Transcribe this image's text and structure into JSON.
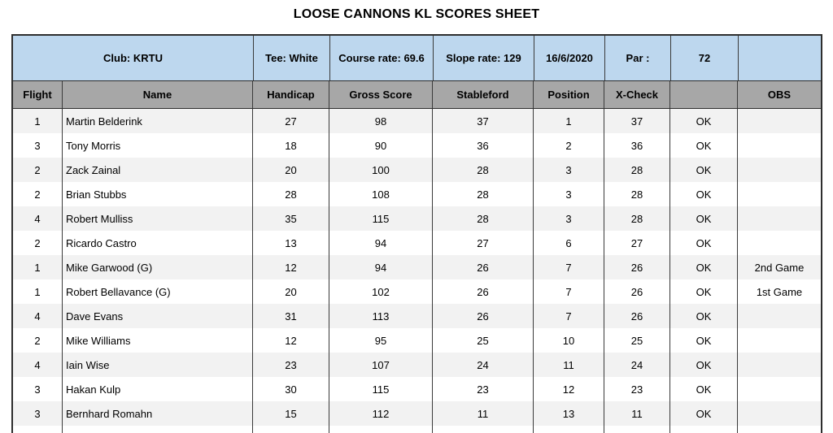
{
  "title": "LOOSE CANNONS KL SCORES SHEET",
  "info_row": {
    "club": "Club: KRTU",
    "tee": "Tee: White",
    "course_rate": "Course rate: 69.6",
    "slope_rate": "Slope rate: 129",
    "date": "16/6/2020",
    "par_label": "Par :",
    "par_value": "72",
    "blank": ""
  },
  "columns": {
    "flight": "Flight",
    "name": "Name",
    "handicap": "Handicap",
    "gross_score": "Gross Score",
    "stableford": "Stableford",
    "position": "Position",
    "x_check": "X-Check",
    "blank": "",
    "obs": "OBS"
  },
  "colors": {
    "info_row_blue": "#BDD7EE",
    "header_gray": "#A7A7A7",
    "stripe_gray": "#F2F2F2",
    "border_dark": "#2E2E2E"
  },
  "rows": [
    {
      "flight": "1",
      "name": "Martin Belderink",
      "handicap": "27",
      "gross_score": "98",
      "stableford": "37",
      "position": "1",
      "x_check": "37",
      "check": "OK",
      "obs": ""
    },
    {
      "flight": "3",
      "name": "Tony Morris",
      "handicap": "18",
      "gross_score": "90",
      "stableford": "36",
      "position": "2",
      "x_check": "36",
      "check": "OK",
      "obs": ""
    },
    {
      "flight": "2",
      "name": "Zack Zainal",
      "handicap": "20",
      "gross_score": "100",
      "stableford": "28",
      "position": "3",
      "x_check": "28",
      "check": "OK",
      "obs": ""
    },
    {
      "flight": "2",
      "name": "Brian Stubbs",
      "handicap": "28",
      "gross_score": "108",
      "stableford": "28",
      "position": "3",
      "x_check": "28",
      "check": "OK",
      "obs": ""
    },
    {
      "flight": "4",
      "name": "Robert Mulliss",
      "handicap": "35",
      "gross_score": "115",
      "stableford": "28",
      "position": "3",
      "x_check": "28",
      "check": "OK",
      "obs": ""
    },
    {
      "flight": "2",
      "name": "Ricardo Castro",
      "handicap": "13",
      "gross_score": "94",
      "stableford": "27",
      "position": "6",
      "x_check": "27",
      "check": "OK",
      "obs": ""
    },
    {
      "flight": "1",
      "name": "Mike Garwood (G)",
      "handicap": "12",
      "gross_score": "94",
      "stableford": "26",
      "position": "7",
      "x_check": "26",
      "check": "OK",
      "obs": "2nd Game"
    },
    {
      "flight": "1",
      "name": "Robert Bellavance (G)",
      "handicap": "20",
      "gross_score": "102",
      "stableford": "26",
      "position": "7",
      "x_check": "26",
      "check": "OK",
      "obs": "1st Game"
    },
    {
      "flight": "4",
      "name": "Dave Evans",
      "handicap": "31",
      "gross_score": "113",
      "stableford": "26",
      "position": "7",
      "x_check": "26",
      "check": "OK",
      "obs": ""
    },
    {
      "flight": "2",
      "name": "Mike Williams",
      "handicap": "12",
      "gross_score": "95",
      "stableford": "25",
      "position": "10",
      "x_check": "25",
      "check": "OK",
      "obs": ""
    },
    {
      "flight": "4",
      "name": "Iain Wise",
      "handicap": "23",
      "gross_score": "107",
      "stableford": "24",
      "position": "11",
      "x_check": "24",
      "check": "OK",
      "obs": ""
    },
    {
      "flight": "3",
      "name": "Hakan Kulp",
      "handicap": "30",
      "gross_score": "115",
      "stableford": "23",
      "position": "12",
      "x_check": "23",
      "check": "OK",
      "obs": ""
    },
    {
      "flight": "3",
      "name": "Bernhard Romahn",
      "handicap": "15",
      "gross_score": "112",
      "stableford": "11",
      "position": "13",
      "x_check": "11",
      "check": "OK",
      "obs": ""
    }
  ]
}
